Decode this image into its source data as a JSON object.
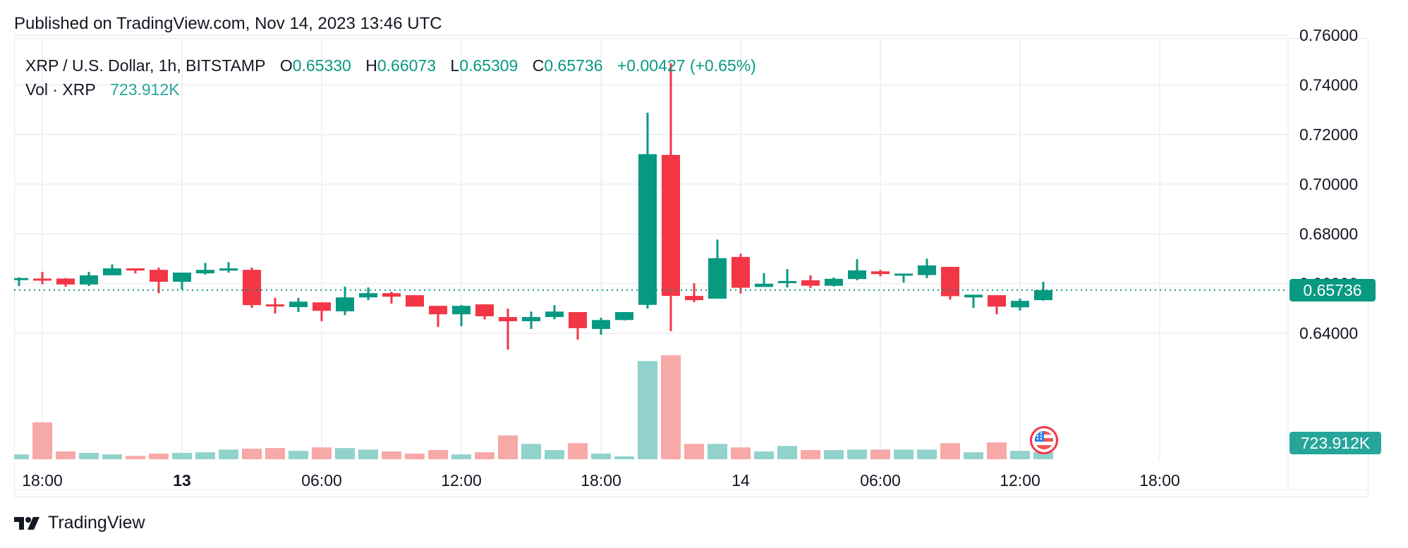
{
  "published": "Published on TradingView.com, Nov 14, 2023 13:46 UTC",
  "legend": {
    "symbol": "XRP / U.S. Dollar, 1h, BITSTAMP",
    "o_label": "O",
    "o": "0.65330",
    "h_label": "H",
    "h": "0.66073",
    "l_label": "L",
    "l": "0.65309",
    "c_label": "C",
    "c": "0.65736",
    "change": "+0.00427 (+0.65%)",
    "vol_label": "Vol · XRP",
    "vol": "723.912K"
  },
  "price_tag": "0.65736",
  "volume_tag": "723.912K",
  "brand": "TradingView",
  "colors": {
    "up": "#089981",
    "down": "#f23645",
    "vol_up": "#92d2cc",
    "vol_down": "#f7a9a7",
    "price_tag": "#089981",
    "vol_tag": "#26a69a",
    "grid": "#f0f1f4"
  },
  "chart_data": {
    "type": "candlestick",
    "title": "XRP / U.S. Dollar, 1h, BITSTAMP",
    "xlabel": "",
    "ylabel": "",
    "ylim": [
      0.627,
      0.762
    ],
    "y_ticks": [
      "0.76000",
      "0.74000",
      "0.72000",
      "0.70000",
      "0.68000",
      "0.66000",
      "0.64000"
    ],
    "x_ticks": [
      {
        "label": "18:00",
        "bold": false,
        "hour_index": 1
      },
      {
        "label": "13",
        "bold": true,
        "hour_index": 7
      },
      {
        "label": "06:00",
        "bold": false,
        "hour_index": 13
      },
      {
        "label": "12:00",
        "bold": false,
        "hour_index": 19
      },
      {
        "label": "18:00",
        "bold": false,
        "hour_index": 25
      },
      {
        "label": "14",
        "bold": false,
        "hour_index": 31
      },
      {
        "label": "06:00",
        "bold": false,
        "hour_index": 37
      },
      {
        "label": "12:00",
        "bold": false,
        "hour_index": 43
      },
      {
        "label": "18:00",
        "bold": false,
        "hour_index": 49
      }
    ],
    "grid": true,
    "last_price": 0.65736,
    "candles": [
      {
        "t": "Nov12 17:00",
        "o": 0.6618,
        "h": 0.6625,
        "l": 0.659,
        "c": 0.6622,
        "v": 0.5
      },
      {
        "t": "Nov12 18:00",
        "o": 0.662,
        "h": 0.6647,
        "l": 0.6597,
        "c": 0.6618,
        "v": 3.8
      },
      {
        "t": "Nov12 19:00",
        "o": 0.662,
        "h": 0.6622,
        "l": 0.6587,
        "c": 0.6596,
        "v": 0.8
      },
      {
        "t": "Nov12 20:00",
        "o": 0.6596,
        "h": 0.6647,
        "l": 0.659,
        "c": 0.6633,
        "v": 0.65
      },
      {
        "t": "Nov12 21:00",
        "o": 0.6633,
        "h": 0.6677,
        "l": 0.6633,
        "c": 0.6661,
        "v": 0.5
      },
      {
        "t": "Nov12 22:00",
        "o": 0.6661,
        "h": 0.6661,
        "l": 0.6641,
        "c": 0.6653,
        "v": 0.35
      },
      {
        "t": "Nov12 23:00",
        "o": 0.6655,
        "h": 0.6664,
        "l": 0.6561,
        "c": 0.6607,
        "v": 0.58
      },
      {
        "t": "Nov13 00:00",
        "o": 0.6607,
        "h": 0.6644,
        "l": 0.6576,
        "c": 0.6644,
        "v": 0.65
      },
      {
        "t": "Nov13 01:00",
        "o": 0.6641,
        "h": 0.6683,
        "l": 0.6636,
        "c": 0.6655,
        "v": 0.72
      },
      {
        "t": "Nov13 02:00",
        "o": 0.6652,
        "h": 0.6686,
        "l": 0.6644,
        "c": 0.6661,
        "v": 1.0
      },
      {
        "t": "Nov13 03:00",
        "o": 0.6655,
        "h": 0.6664,
        "l": 0.6502,
        "c": 0.6513,
        "v": 1.08
      },
      {
        "t": "Nov13 04:00",
        "o": 0.6516,
        "h": 0.6542,
        "l": 0.6479,
        "c": 0.651,
        "v": 1.15
      },
      {
        "t": "Nov13 05:00",
        "o": 0.6505,
        "h": 0.6542,
        "l": 0.6485,
        "c": 0.6527,
        "v": 0.86
      },
      {
        "t": "Nov13 06:00",
        "o": 0.6524,
        "h": 0.6524,
        "l": 0.6448,
        "c": 0.649,
        "v": 1.22
      },
      {
        "t": "Nov13 07:00",
        "o": 0.6488,
        "h": 0.6587,
        "l": 0.6473,
        "c": 0.6544,
        "v": 1.15
      },
      {
        "t": "Nov13 08:00",
        "o": 0.6544,
        "h": 0.6584,
        "l": 0.6533,
        "c": 0.6561,
        "v": 1.0
      },
      {
        "t": "Nov13 09:00",
        "o": 0.6561,
        "h": 0.6567,
        "l": 0.6519,
        "c": 0.6547,
        "v": 0.8
      },
      {
        "t": "Nov13 10:00",
        "o": 0.6553,
        "h": 0.6553,
        "l": 0.6507,
        "c": 0.6507,
        "v": 0.58
      },
      {
        "t": "Nov13 11:00",
        "o": 0.651,
        "h": 0.651,
        "l": 0.6425,
        "c": 0.6476,
        "v": 0.94
      },
      {
        "t": "Nov13 12:00",
        "o": 0.6476,
        "h": 0.6513,
        "l": 0.6428,
        "c": 0.651,
        "v": 0.5
      },
      {
        "t": "Nov13 13:00",
        "o": 0.6516,
        "h": 0.6516,
        "l": 0.6456,
        "c": 0.6468,
        "v": 0.72
      },
      {
        "t": "Nov13 14:00",
        "o": 0.6465,
        "h": 0.6499,
        "l": 0.6334,
        "c": 0.6448,
        "v": 2.45
      },
      {
        "t": "Nov13 15:00",
        "o": 0.6448,
        "h": 0.6487,
        "l": 0.6417,
        "c": 0.6465,
        "v": 1.58
      },
      {
        "t": "Nov13 16:00",
        "o": 0.6465,
        "h": 0.6513,
        "l": 0.6456,
        "c": 0.6487,
        "v": 0.94
      },
      {
        "t": "Nov13 17:00",
        "o": 0.6485,
        "h": 0.6485,
        "l": 0.6374,
        "c": 0.642,
        "v": 1.65
      },
      {
        "t": "Nov13 18:00",
        "o": 0.6417,
        "h": 0.6462,
        "l": 0.6394,
        "c": 0.6453,
        "v": 0.58
      },
      {
        "t": "Nov13 19:00",
        "o": 0.6453,
        "h": 0.6485,
        "l": 0.6451,
        "c": 0.6485,
        "v": 0.29
      },
      {
        "t": "Nov13 20:00",
        "o": 0.6514,
        "h": 0.7288,
        "l": 0.6499,
        "c": 0.7121,
        "v": 10.1
      },
      {
        "t": "Nov13 21:00",
        "o": 0.7118,
        "h": 0.7487,
        "l": 0.6408,
        "c": 0.655,
        "v": 10.7
      },
      {
        "t": "Nov13 22:00",
        "o": 0.655,
        "h": 0.6601,
        "l": 0.6525,
        "c": 0.6533,
        "v": 1.58
      },
      {
        "t": "Nov13 23:00",
        "o": 0.6539,
        "h": 0.6777,
        "l": 0.6539,
        "c": 0.6702,
        "v": 1.58
      },
      {
        "t": "Nov14 00:00",
        "o": 0.6707,
        "h": 0.672,
        "l": 0.656,
        "c": 0.6583,
        "v": 1.22
      },
      {
        "t": "Nov14 01:00",
        "o": 0.6586,
        "h": 0.6642,
        "l": 0.6586,
        "c": 0.6599,
        "v": 0.8
      },
      {
        "t": "Nov14 02:00",
        "o": 0.6602,
        "h": 0.6658,
        "l": 0.6584,
        "c": 0.661,
        "v": 1.37
      },
      {
        "t": "Nov14 03:00",
        "o": 0.6613,
        "h": 0.6633,
        "l": 0.6582,
        "c": 0.6591,
        "v": 0.94
      },
      {
        "t": "Nov14 04:00",
        "o": 0.6591,
        "h": 0.6624,
        "l": 0.6588,
        "c": 0.6619,
        "v": 0.94
      },
      {
        "t": "Nov14 05:00",
        "o": 0.6618,
        "h": 0.6698,
        "l": 0.6613,
        "c": 0.6653,
        "v": 1.0
      },
      {
        "t": "Nov14 06:00",
        "o": 0.6649,
        "h": 0.6655,
        "l": 0.6629,
        "c": 0.6638,
        "v": 1.0
      },
      {
        "t": "Nov14 07:00",
        "o": 0.6636,
        "h": 0.664,
        "l": 0.6604,
        "c": 0.664,
        "v": 1.0
      },
      {
        "t": "Nov14 08:00",
        "o": 0.6634,
        "h": 0.67,
        "l": 0.6622,
        "c": 0.6673,
        "v": 1.0
      },
      {
        "t": "Nov14 09:00",
        "o": 0.6667,
        "h": 0.6667,
        "l": 0.6535,
        "c": 0.6549,
        "v": 1.65
      },
      {
        "t": "Nov14 10:00",
        "o": 0.6544,
        "h": 0.6555,
        "l": 0.6502,
        "c": 0.6555,
        "v": 0.72
      },
      {
        "t": "Nov14 11:00",
        "o": 0.6553,
        "h": 0.6553,
        "l": 0.6476,
        "c": 0.6507,
        "v": 1.73
      },
      {
        "t": "Nov14 12:00",
        "o": 0.6504,
        "h": 0.6539,
        "l": 0.6491,
        "c": 0.653,
        "v": 0.86
      },
      {
        "t": "Nov14 13:00",
        "o": 0.6533,
        "h": 0.66073,
        "l": 0.65309,
        "c": 0.65736,
        "v": 0.724
      }
    ],
    "volume_unit": "M XRP (approx.)",
    "last_volume": "723.912K"
  }
}
